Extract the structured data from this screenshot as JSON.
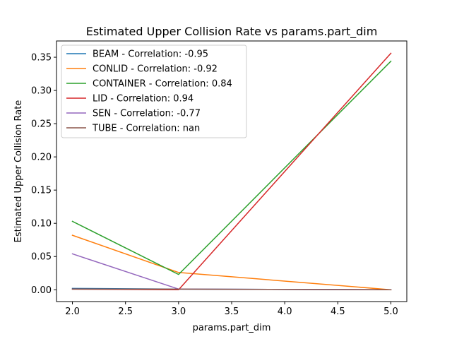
{
  "chart_data": {
    "type": "line",
    "title": "Estimated Upper Collision Rate vs params.part_dim",
    "xlabel": "params.part_dim",
    "ylabel": "Estimated Upper Collision Rate",
    "xlim": [
      1.85,
      5.15
    ],
    "ylim": [
      -0.0178,
      0.3745
    ],
    "xticks": [
      2.0,
      2.5,
      3.0,
      3.5,
      4.0,
      4.5,
      5.0
    ],
    "xtick_labels": [
      "2.0",
      "2.5",
      "3.0",
      "3.5",
      "4.0",
      "4.5",
      "5.0"
    ],
    "yticks": [
      0.0,
      0.05,
      0.1,
      0.15,
      0.2,
      0.25,
      0.3,
      0.35
    ],
    "ytick_labels": [
      "0.00",
      "0.05",
      "0.10",
      "0.15",
      "0.20",
      "0.25",
      "0.30",
      "0.35"
    ],
    "grid": false,
    "legend_position": "top-left",
    "series": [
      {
        "name": "BEAM - Correlation: -0.95",
        "color": "#1f77b4",
        "x": [
          2,
          3,
          5
        ],
        "y": [
          0.002,
          0.001,
          0.0
        ]
      },
      {
        "name": "CONLID - Correlation: -0.92",
        "color": "#ff7f0e",
        "x": [
          2,
          3,
          5
        ],
        "y": [
          0.082,
          0.026,
          0.0
        ]
      },
      {
        "name": "CONTAINER - Correlation: 0.84",
        "color": "#2ca02c",
        "x": [
          2,
          3,
          5
        ],
        "y": [
          0.103,
          0.023,
          0.344
        ]
      },
      {
        "name": "LID - Correlation: 0.94",
        "color": "#d62728",
        "x": [
          2,
          3,
          5
        ],
        "y": [
          0.001,
          0.0,
          0.356
        ]
      },
      {
        "name": "SEN - Correlation: -0.77",
        "color": "#9467bd",
        "x": [
          2,
          3,
          5
        ],
        "y": [
          0.054,
          0.001,
          0.0
        ]
      },
      {
        "name": "TUBE - Correlation: nan",
        "color": "#8c564b",
        "x": [
          2,
          3,
          5
        ],
        "y": [
          0.001,
          0.001,
          0.0
        ]
      }
    ]
  }
}
